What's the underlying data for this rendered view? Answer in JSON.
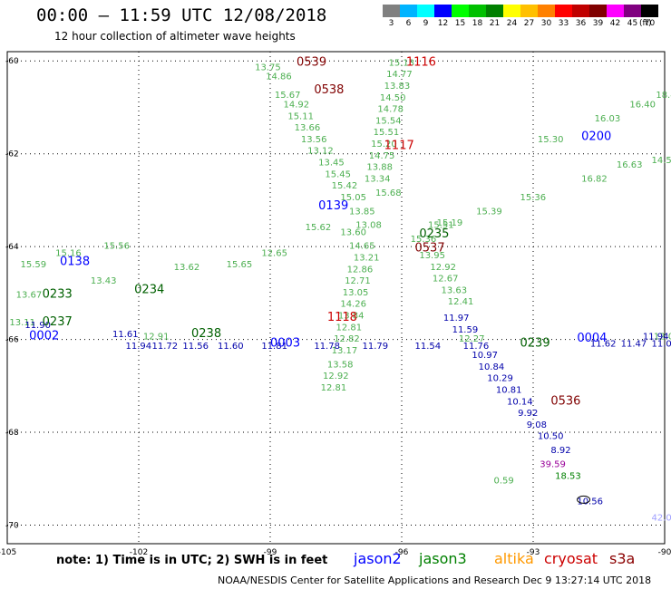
{
  "header": {
    "title": "00:00 — 11:59 UTC 12/08/2018",
    "subtitle": "12 hour collection of altimeter wave heights"
  },
  "colorbar": {
    "labels": [
      "3",
      "6",
      "9",
      "12",
      "15",
      "18",
      "21",
      "24",
      "27",
      "30",
      "33",
      "36",
      "39",
      "42",
      "45",
      "70"
    ],
    "unit": "(ft)",
    "colors": [
      "#808080",
      "#00b4ff",
      "#00ffff",
      "#0000ff",
      "#00ff00",
      "#00c000",
      "#008000",
      "#ffff00",
      "#ffc000",
      "#ff8000",
      "#ff0000",
      "#c00000",
      "#800000",
      "#ff00ff",
      "#800080",
      "#000000"
    ]
  },
  "footer": {
    "note": "note: 1) Time is in UTC; 2) SWH is in feet",
    "satellites": [
      {
        "name": "jason2",
        "color": "#0000ff"
      },
      {
        "name": "jason3",
        "color": "#008000"
      },
      {
        "name": "altika",
        "color": "#ff9900"
      },
      {
        "name": "cryosat",
        "color": "#cc0000"
      },
      {
        "name": "s3a",
        "color": "#8b0000"
      }
    ],
    "credit": "NOAA/NESDIS Center for Satellite Applications and Research   Dec  9 13:27:14 UTC 2018"
  },
  "chart_data": {
    "type": "scatter",
    "title": "00:00 — 11:59 UTC 12/08/2018",
    "subtitle": "12 hour collection of altimeter wave heights",
    "xlim": [
      -105,
      -90
    ],
    "ylim": [
      -70.4,
      -59.8
    ],
    "xticks": [
      -105,
      -102,
      -99,
      -96,
      -93,
      -90
    ],
    "xtick_labels": [
      "-105",
      "-102",
      "-99",
      "-96",
      "-93",
      "-90"
    ],
    "yticks": [
      -60,
      -62,
      -64,
      -66,
      -68,
      -70
    ],
    "ytick_labels": [
      "-60",
      "-62",
      "-64",
      "-66",
      "-68",
      "-70"
    ],
    "grid": true,
    "time_labels": [
      {
        "t": "0539",
        "x": -98.4,
        "y": -60.1,
        "color": "#800000"
      },
      {
        "t": "0538",
        "x": -98.0,
        "y": -60.7,
        "color": "#800000"
      },
      {
        "t": "1116",
        "x": -95.9,
        "y": -60.1,
        "color": "#cc0000"
      },
      {
        "t": "1117",
        "x": -96.4,
        "y": -61.9,
        "color": "#cc0000"
      },
      {
        "t": "0200",
        "x": -91.9,
        "y": -61.7,
        "color": "#0000ff"
      },
      {
        "t": "0139",
        "x": -97.9,
        "y": -63.2,
        "color": "#0000ff"
      },
      {
        "t": "0235",
        "x": -95.6,
        "y": -63.8,
        "color": "#006000"
      },
      {
        "t": "0537",
        "x": -95.7,
        "y": -64.1,
        "color": "#800000"
      },
      {
        "t": "0138",
        "x": -103.8,
        "y": -64.4,
        "color": "#0000ff"
      },
      {
        "t": "0234",
        "x": -102.1,
        "y": -65.0,
        "color": "#006000"
      },
      {
        "t": "0233",
        "x": -104.2,
        "y": -65.1,
        "color": "#006000"
      },
      {
        "t": "1118",
        "x": -97.7,
        "y": -65.6,
        "color": "#cc0000"
      },
      {
        "t": "0237",
        "x": -104.2,
        "y": -65.7,
        "color": "#006000"
      },
      {
        "t": "0002",
        "x": -104.5,
        "y": -66.0,
        "color": "#0000ff"
      },
      {
        "t": "0238",
        "x": -100.8,
        "y": -65.95,
        "color": "#006000"
      },
      {
        "t": "0003",
        "x": -99.0,
        "y": -66.15,
        "color": "#0000ff"
      },
      {
        "t": "0239",
        "x": -93.3,
        "y": -66.15,
        "color": "#006000"
      },
      {
        "t": "0004",
        "x": -92.0,
        "y": -66.05,
        "color": "#0000ff"
      },
      {
        "t": "0536",
        "x": -92.6,
        "y": -67.4,
        "color": "#800000"
      }
    ],
    "series": [
      {
        "name": "jason3",
        "color": "#4caf50",
        "points": [
          {
            "x": -99.35,
            "y": -60.2,
            "v": 13.75
          },
          {
            "x": -99.1,
            "y": -60.4,
            "v": 14.86
          },
          {
            "x": -98.9,
            "y": -60.8,
            "v": 15.67
          },
          {
            "x": -98.7,
            "y": -61.0,
            "v": 14.92
          },
          {
            "x": -98.6,
            "y": -61.25,
            "v": 15.11
          },
          {
            "x": -98.45,
            "y": -61.5,
            "v": 13.66
          },
          {
            "x": -98.3,
            "y": -61.75,
            "v": 13.56
          },
          {
            "x": -98.15,
            "y": -62.0,
            "v": 13.12
          },
          {
            "x": -97.9,
            "y": -62.25,
            "v": 13.45
          },
          {
            "x": -97.75,
            "y": -62.5,
            "v": 15.45
          },
          {
            "x": -97.6,
            "y": -62.75,
            "v": 15.42
          },
          {
            "x": -97.4,
            "y": -63.0,
            "v": 15.05
          },
          {
            "x": -97.2,
            "y": -63.3,
            "v": 13.85
          },
          {
            "x": -97.05,
            "y": -63.6,
            "v": 13.08
          },
          {
            "x": -97.4,
            "y": -63.75,
            "v": 13.6
          },
          {
            "x": -97.2,
            "y": -64.05,
            "v": 14.65
          },
          {
            "x": -97.1,
            "y": -64.3,
            "v": 13.21
          },
          {
            "x": -97.25,
            "y": -64.55,
            "v": 12.86
          },
          {
            "x": -97.3,
            "y": -64.8,
            "v": 12.71
          },
          {
            "x": -97.35,
            "y": -65.05,
            "v": 13.05
          },
          {
            "x": -97.4,
            "y": -65.3,
            "v": 14.26
          },
          {
            "x": -97.45,
            "y": -65.55,
            "v": 13.84
          },
          {
            "x": -97.5,
            "y": -65.8,
            "v": 12.81
          },
          {
            "x": -97.55,
            "y": -66.05,
            "v": 12.82
          },
          {
            "x": -97.6,
            "y": -66.3,
            "v": 13.17
          },
          {
            "x": -97.7,
            "y": -66.6,
            "v": 13.58
          },
          {
            "x": -97.8,
            "y": -66.85,
            "v": 12.92
          },
          {
            "x": -97.85,
            "y": -67.1,
            "v": 12.81
          },
          {
            "x": -96.3,
            "y": -60.1,
            "v": 15.13
          },
          {
            "x": -96.35,
            "y": -60.35,
            "v": 14.77
          },
          {
            "x": -96.4,
            "y": -60.6,
            "v": 13.83
          },
          {
            "x": -96.5,
            "y": -60.85,
            "v": 14.5
          },
          {
            "x": -96.55,
            "y": -61.1,
            "v": 14.78
          },
          {
            "x": -96.6,
            "y": -61.35,
            "v": 15.54
          },
          {
            "x": -96.65,
            "y": -61.6,
            "v": 15.51
          },
          {
            "x": -96.7,
            "y": -61.85,
            "v": 15.2
          },
          {
            "x": -96.75,
            "y": -62.1,
            "v": 14.75
          },
          {
            "x": -96.8,
            "y": -62.35,
            "v": 13.88
          },
          {
            "x": -96.85,
            "y": -62.6,
            "v": 13.34
          },
          {
            "x": -95.6,
            "y": -64.25,
            "v": 13.95
          },
          {
            "x": -95.35,
            "y": -64.5,
            "v": 12.92
          },
          {
            "x": -95.3,
            "y": -64.75,
            "v": 12.67
          },
          {
            "x": -95.1,
            "y": -65.0,
            "v": 13.63
          },
          {
            "x": -94.95,
            "y": -65.25,
            "v": 12.41
          },
          {
            "x": -94.7,
            "y": -66.05,
            "v": 12.27
          },
          {
            "x": -95.8,
            "y": -63.9,
            "v": 15.36
          },
          {
            "x": -95.4,
            "y": -63.6,
            "v": 15.51
          },
          {
            "x": -95.2,
            "y": -63.55,
            "v": 15.19
          },
          {
            "x": -104.7,
            "y": -64.45,
            "v": 15.59
          },
          {
            "x": -103.9,
            "y": -64.2,
            "v": 15.16
          },
          {
            "x": -102.8,
            "y": -64.05,
            "v": 15.56
          },
          {
            "x": -101.2,
            "y": -64.5,
            "v": 13.62
          },
          {
            "x": -100.0,
            "y": -64.45,
            "v": 15.65
          },
          {
            "x": -99.2,
            "y": -64.2,
            "v": 12.65
          },
          {
            "x": -98.2,
            "y": -63.65,
            "v": 15.62
          },
          {
            "x": -96.6,
            "y": -62.9,
            "v": 15.68
          },
          {
            "x": -94.3,
            "y": -63.3,
            "v": 15.39
          },
          {
            "x": -93.3,
            "y": -63.0,
            "v": 15.36
          },
          {
            "x": -91.9,
            "y": -62.6,
            "v": 16.82
          },
          {
            "x": -91.1,
            "y": -62.3,
            "v": 16.63
          },
          {
            "x": -90.3,
            "y": -62.2,
            "v": 14.5
          },
          {
            "x": -92.9,
            "y": -61.75,
            "v": 15.3
          },
          {
            "x": -91.6,
            "y": -61.3,
            "v": 16.03
          },
          {
            "x": -90.8,
            "y": -61.0,
            "v": 16.4
          },
          {
            "x": -90.2,
            "y": -60.8,
            "v": 18.4
          },
          {
            "x": -104.8,
            "y": -65.1,
            "v": 13.67
          },
          {
            "x": -103.1,
            "y": -64.8,
            "v": 13.43
          },
          {
            "x": -104.95,
            "y": -65.7,
            "v": 13.11
          },
          {
            "x": -101.9,
            "y": -66.0,
            "v": 12.91
          },
          {
            "x": -90.25,
            "y": -66.0,
            "v": 12.0
          },
          {
            "x": -93.9,
            "y": -69.1,
            "v": 0.59
          }
        ]
      },
      {
        "name": "jason2",
        "color": "#0000aa",
        "points": [
          {
            "x": -104.6,
            "y": -65.75,
            "v": 11.9
          },
          {
            "x": -102.6,
            "y": -65.95,
            "v": 11.61
          },
          {
            "x": -102.3,
            "y": -66.2,
            "v": 11.94
          },
          {
            "x": -101.7,
            "y": -66.2,
            "v": 11.72
          },
          {
            "x": -101.0,
            "y": -66.2,
            "v": 11.56
          },
          {
            "x": -100.2,
            "y": -66.2,
            "v": 11.6
          },
          {
            "x": -99.2,
            "y": -66.2,
            "v": 11.81
          },
          {
            "x": -98.0,
            "y": -66.2,
            "v": 11.78
          },
          {
            "x": -96.9,
            "y": -66.2,
            "v": 11.79
          },
          {
            "x": -95.7,
            "y": -66.2,
            "v": 11.54
          },
          {
            "x": -94.6,
            "y": -66.2,
            "v": 11.76
          },
          {
            "x": -91.7,
            "y": -66.15,
            "v": 11.62
          },
          {
            "x": -91.0,
            "y": -66.15,
            "v": 11.47
          },
          {
            "x": -90.3,
            "y": -66.15,
            "v": 11.05
          },
          {
            "x": -90.5,
            "y": -66.0,
            "v": 11.94
          },
          {
            "x": -95.05,
            "y": -65.6,
            "v": 11.97
          },
          {
            "x": -94.85,
            "y": -65.85,
            "v": 11.59
          },
          {
            "x": -94.4,
            "y": -66.4,
            "v": 10.97
          },
          {
            "x": -94.25,
            "y": -66.65,
            "v": 10.84
          },
          {
            "x": -94.05,
            "y": -66.9,
            "v": 10.29
          },
          {
            "x": -93.85,
            "y": -67.15,
            "v": 10.81
          },
          {
            "x": -93.6,
            "y": -67.4,
            "v": 10.14
          },
          {
            "x": -93.35,
            "y": -67.65,
            "v": 9.92
          },
          {
            "x": -93.15,
            "y": -67.9,
            "v": 9.08
          },
          {
            "x": -92.9,
            "y": -68.15,
            "v": 10.5
          },
          {
            "x": -92.6,
            "y": -68.45,
            "v": 8.92
          },
          {
            "x": -92.0,
            "y": -69.55,
            "v": 10.56
          }
        ]
      },
      {
        "name": "s3a",
        "color": "#990099",
        "points": [
          {
            "x": -92.85,
            "y": -68.75,
            "v": 39.59
          }
        ]
      },
      {
        "name": "jason3-deep",
        "color": "#008000",
        "points": [
          {
            "x": -92.5,
            "y": -69.0,
            "v": 18.53
          }
        ]
      },
      {
        "name": "altika-faint",
        "color": "#a0a0ff",
        "points": [
          {
            "x": -90.3,
            "y": -69.9,
            "v": 42.09
          }
        ]
      }
    ]
  }
}
